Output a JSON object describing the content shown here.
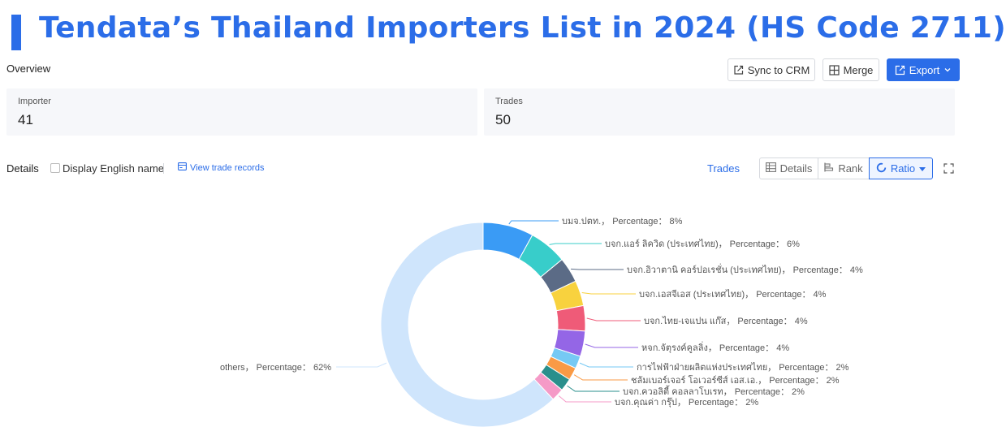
{
  "page": {
    "title": "Tendata’s Thailand Importers List in 2024 (HS Code 2711)"
  },
  "overview": {
    "label": "Overview",
    "sync_label": "Sync to CRM",
    "merge_label": "Merge",
    "export_label": "Export",
    "importer_label": "Importer",
    "importer_value": "41",
    "trades_label": "Trades",
    "trades_value": "50"
  },
  "details": {
    "label": "Details",
    "display_english_label": "Display English name",
    "view_records_label": "View trade records",
    "trades_tab": "Trades",
    "view_details_label": "Details",
    "view_rank_label": "Rank",
    "view_ratio_label": "Ratio"
  },
  "chart_data": {
    "type": "pie",
    "style": "donut",
    "series_label": "Percentage",
    "slices": [
      {
        "name": "บมจ.ปตท.",
        "value": 8,
        "label": "บมจ.ปตท.， Percentage： 8%",
        "color": "#3a9bf5"
      },
      {
        "name": "บจก.แอร์ ลิควิด (ประเทศไทย)",
        "value": 6,
        "label": "บจก.แอร์ ลิควิด (ประเทศไทย)， Percentage： 6%",
        "color": "#38cdca"
      },
      {
        "name": "บจก.อิวาตานิ คอร์ปอเรชั่น (ประเทศไทย)",
        "value": 4,
        "label": "บจก.อิวาตานิ คอร์ปอเรชั่น (ประเทศไทย)， Percentage： 4%",
        "color": "#5b6b86"
      },
      {
        "name": "บจก.เอสจีเอส (ประเทศไทย)",
        "value": 4,
        "label": "บจก.เอสจีเอส (ประเทศไทย)， Percentage： 4%",
        "color": "#f8d23e"
      },
      {
        "name": "บจก.ไทย-เจแปน แก๊ส",
        "value": 4,
        "label": "บจก.ไทย-เจแปน แก๊ส， Percentage： 4%",
        "color": "#ef5b78"
      },
      {
        "name": "หจก.จัตุรงค์คูลลิ่ง",
        "value": 4,
        "label": "หจก.จัตุรงค์คูลลิ่ง， Percentage： 4%",
        "color": "#9466e6"
      },
      {
        "name": "การไฟฟ้าฝ่ายผลิตแห่งประเทศไทย",
        "value": 2,
        "label": "การไฟฟ้าฝ่ายผลิตแห่งประเทศไทย， Percentage： 2%",
        "color": "#76c9f4"
      },
      {
        "name": "ชลัมเบอร์เจอร์ โอเวอร์ซีส์ เอส.เอ.",
        "value": 2,
        "label": "ชลัมเบอร์เจอร์ โอเวอร์ซีส์ เอส.เอ.， Percentage： 2%",
        "color": "#fa9a45"
      },
      {
        "name": "บจก.ควอลิตี้ คอลลาโบเรท",
        "value": 2,
        "label": "บจก.ควอลิตี้ คอลลาโบเรท， Percentage： 2%",
        "color": "#2a8f8c"
      },
      {
        "name": "บจก.คุณค่า กรุ๊ป",
        "value": 2,
        "label": "บจก.คุณค่า กรุ๊ป， Percentage： 2%",
        "color": "#f59ac7"
      },
      {
        "name": "others",
        "value": 62,
        "label": "others， Percentage： 62%",
        "color": "#cfe5fc"
      }
    ]
  }
}
